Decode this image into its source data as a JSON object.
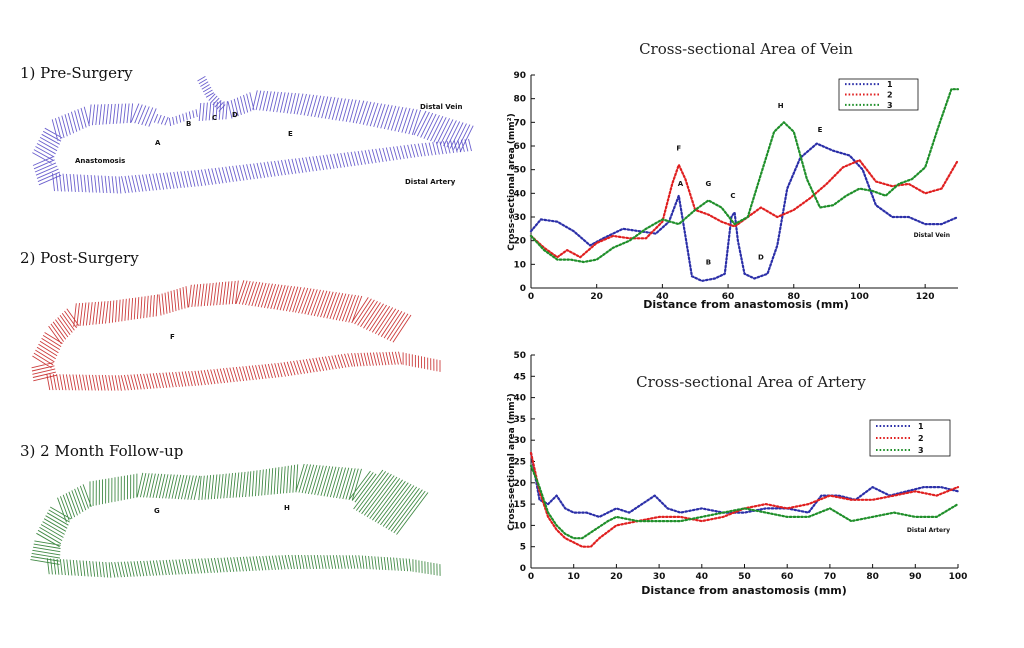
{
  "panels": {
    "pre_surgery": {
      "title": "1) Pre-Surgery",
      "labels": [
        "A",
        "B",
        "C",
        "D",
        "E",
        "Anastomosis",
        "Distal Vein",
        "Distal Artery"
      ],
      "color": "#5b4fc9"
    },
    "post_surgery": {
      "title": "2) Post-Surgery",
      "labels": [
        "F"
      ],
      "color": "#c62828"
    },
    "follow_up": {
      "title": "3) 2 Month Follow-up",
      "labels": [
        "G",
        "H"
      ],
      "color": "#2e7d32"
    }
  },
  "chart_data": [
    {
      "type": "line",
      "title": "Cross-sectional Area of Vein",
      "xlabel": "Distance from anastomosis (mm)",
      "ylabel": "Cross-sectional area (mm²)",
      "xlim": [
        0,
        130
      ],
      "ylim": [
        0,
        90
      ],
      "xticks": [
        0,
        20,
        40,
        60,
        80,
        100,
        120
      ],
      "yticks": [
        0,
        10,
        20,
        30,
        40,
        50,
        60,
        70,
        80,
        90
      ],
      "legend_position": "top-right",
      "corner_label": "Distal Vein",
      "series": [
        {
          "name": "1",
          "color": "#2b2fa8",
          "x": [
            0,
            3,
            8,
            13,
            18,
            22,
            28,
            33,
            38,
            42,
            45,
            47,
            49,
            52,
            56,
            59,
            61,
            62,
            63,
            65,
            68,
            72,
            75,
            78,
            82,
            87,
            92,
            97,
            101,
            105,
            110,
            115,
            120,
            125,
            130
          ],
          "y": [
            24,
            29,
            28,
            24,
            18,
            21,
            25,
            24,
            23,
            28,
            39,
            22,
            5,
            3,
            4,
            6,
            30,
            32,
            20,
            6,
            4,
            6,
            18,
            42,
            55,
            61,
            58,
            56,
            50,
            35,
            30,
            30,
            27,
            27,
            30
          ]
        },
        {
          "name": "2",
          "color": "#e02020",
          "x": [
            0,
            4,
            8,
            11,
            15,
            20,
            25,
            30,
            35,
            40,
            43,
            45,
            47,
            50,
            54,
            58,
            62,
            66,
            70,
            75,
            80,
            85,
            90,
            95,
            100,
            105,
            110,
            115,
            120,
            125,
            130
          ],
          "y": [
            22,
            17,
            13,
            16,
            13,
            19,
            22,
            21,
            21,
            28,
            44,
            52,
            46,
            33,
            31,
            28,
            26,
            30,
            34,
            30,
            33,
            38,
            44,
            51,
            54,
            45,
            43,
            44,
            40,
            42,
            54
          ]
        },
        {
          "name": "3",
          "color": "#1f8f2a",
          "x": [
            0,
            4,
            8,
            12,
            16,
            20,
            25,
            30,
            35,
            40,
            45,
            50,
            54,
            58,
            62,
            66,
            70,
            74,
            77,
            80,
            84,
            88,
            92,
            96,
            100,
            104,
            108,
            112,
            116,
            120,
            124,
            128,
            130
          ],
          "y": [
            22,
            16,
            12,
            12,
            11,
            12,
            17,
            20,
            25,
            29,
            27,
            33,
            37,
            34,
            27,
            30,
            48,
            66,
            70,
            66,
            46,
            34,
            35,
            39,
            42,
            41,
            39,
            44,
            46,
            51,
            68,
            84,
            84
          ]
        }
      ],
      "annotations": [
        {
          "text": "A",
          "x": 45.5,
          "y": 43
        },
        {
          "text": "B",
          "x": 54,
          "y": 10
        },
        {
          "text": "C",
          "x": 61.5,
          "y": 38
        },
        {
          "text": "D",
          "x": 70,
          "y": 12
        },
        {
          "text": "E",
          "x": 88,
          "y": 66
        },
        {
          "text": "F",
          "x": 45,
          "y": 58
        },
        {
          "text": "G",
          "x": 54,
          "y": 43
        },
        {
          "text": "H",
          "x": 76,
          "y": 76
        }
      ]
    },
    {
      "type": "line",
      "title": "Cross-sectional Area of Artery",
      "xlabel": "Distance from anastomosis (mm)",
      "ylabel": "Cross-sectional area (mm²)",
      "xlim": [
        0,
        100
      ],
      "ylim": [
        0,
        50
      ],
      "xticks": [
        0,
        10,
        20,
        30,
        40,
        50,
        60,
        70,
        80,
        90,
        100
      ],
      "yticks": [
        0,
        5,
        10,
        15,
        20,
        25,
        30,
        35,
        40,
        45,
        50
      ],
      "legend_position": "top-right",
      "corner_label": "Distal Artery",
      "series": [
        {
          "name": "1",
          "color": "#2b2fa8",
          "x": [
            0,
            2,
            4,
            6,
            8,
            10,
            13,
            16,
            20,
            23,
            26,
            29,
            32,
            35,
            40,
            45,
            50,
            55,
            60,
            65,
            68,
            72,
            76,
            80,
            84,
            88,
            92,
            96,
            100
          ],
          "y": [
            27,
            16,
            15,
            17,
            14,
            13,
            13,
            12,
            14,
            13,
            15,
            17,
            14,
            13,
            14,
            13,
            13,
            14,
            14,
            13,
            17,
            17,
            16,
            19,
            17,
            18,
            19,
            19,
            18
          ]
        },
        {
          "name": "2",
          "color": "#e02020",
          "x": [
            0,
            2,
            4,
            6,
            8,
            10,
            12,
            14,
            16,
            20,
            25,
            30,
            35,
            40,
            45,
            50,
            55,
            60,
            65,
            70,
            75,
            80,
            85,
            90,
            95,
            100
          ],
          "y": [
            27,
            18,
            12,
            9,
            7,
            6,
            5,
            5,
            7,
            10,
            11,
            12,
            12,
            11,
            12,
            14,
            15,
            14,
            15,
            17,
            16,
            16,
            17,
            18,
            17,
            19
          ]
        },
        {
          "name": "3",
          "color": "#1f8f2a",
          "x": [
            0,
            2,
            4,
            6,
            8,
            10,
            12,
            15,
            18,
            20,
            25,
            30,
            35,
            40,
            45,
            50,
            55,
            60,
            65,
            70,
            75,
            80,
            85,
            90,
            95,
            100
          ],
          "y": [
            24,
            19,
            13,
            10,
            8,
            7,
            7,
            9,
            11,
            12,
            11,
            11,
            11,
            12,
            13,
            14,
            13,
            12,
            12,
            14,
            11,
            12,
            13,
            12,
            12,
            15
          ]
        }
      ]
    }
  ]
}
